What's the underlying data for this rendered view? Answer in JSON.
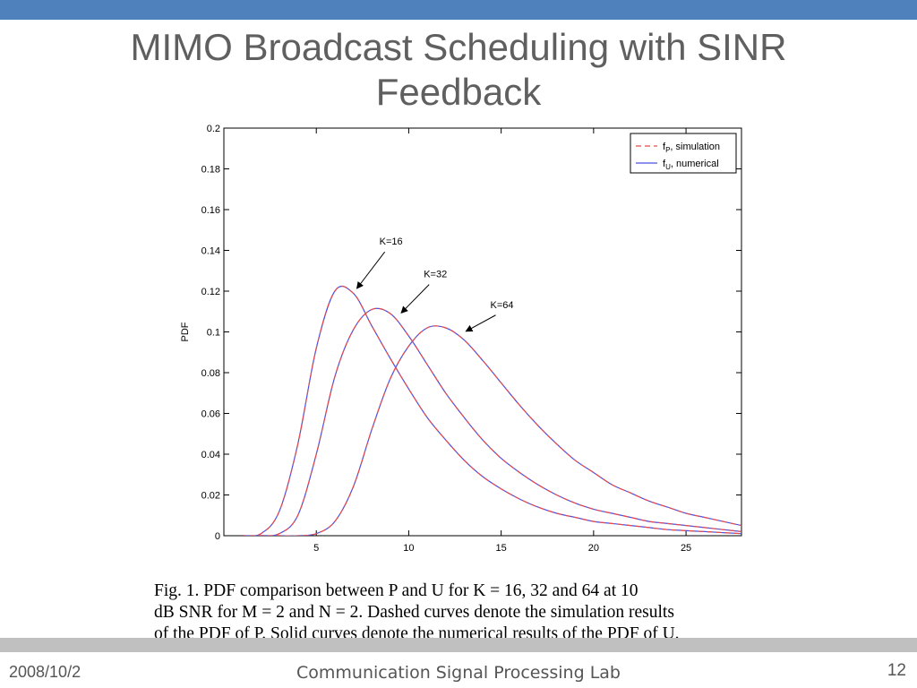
{
  "slide": {
    "title_line1": "MIMO Broadcast Scheduling with SINR",
    "title_line2": "Feedback",
    "footer_date": "2008/10/2",
    "footer_lab": "Communication Signal Processing Lab",
    "page_number": "12",
    "caption_line1": "Fig. 1.    PDF comparison between P and U for K = 16, 32 and 64 at 10",
    "caption_line2": "dB SNR for M = 2 and N = 2. Dashed curves denote the simulation results",
    "caption_line3": "of the PDF of P. Solid curves denote the numerical results of the PDF of U.",
    "colors": {
      "band": "#4f81bd",
      "footer_band": "#c0c0c0",
      "solid": "#4a50e0",
      "dashed": "#e84a4a"
    }
  },
  "chart_data": {
    "type": "line",
    "xlim": [
      0,
      28
    ],
    "ylim": [
      0,
      0.2
    ],
    "ylabel": "PDF",
    "xlabel": "",
    "x_ticks": [
      5,
      10,
      15,
      20,
      25
    ],
    "y_ticks": [
      0,
      0.02,
      0.04,
      0.06,
      0.08,
      0.1,
      0.12,
      0.14,
      0.16,
      0.18,
      0.2
    ],
    "y_tick_labels": [
      "0",
      "0.02",
      "0.04",
      "0.06",
      "0.08",
      "0.1",
      "0.12",
      "0.14",
      "0.16",
      "0.18",
      "0.2"
    ],
    "grid": false,
    "legend": {
      "placement": "top-right",
      "entries": [
        {
          "label": "fP, simulation",
          "sym": "f",
          "sub": "P",
          "text": ", simulation",
          "style": "dashed"
        },
        {
          "label": "fU, numerical",
          "sym": "f",
          "sub": "U",
          "text": ", numerical",
          "style": "solid"
        }
      ]
    },
    "x": [
      1,
      2,
      3,
      4,
      5,
      6,
      7,
      8,
      9,
      10,
      11,
      12,
      13,
      14,
      15,
      16,
      17,
      18,
      19,
      20,
      21,
      22,
      23,
      24,
      25,
      26,
      27,
      28
    ],
    "series": [
      {
        "name": "K=16",
        "y": [
          0.0,
          0.001,
          0.012,
          0.045,
          0.092,
          0.12,
          0.119,
          0.103,
          0.087,
          0.072,
          0.058,
          0.047,
          0.037,
          0.029,
          0.023,
          0.018,
          0.014,
          0.011,
          0.009,
          0.007,
          0.006,
          0.005,
          0.004,
          0.003,
          0.0025,
          0.002,
          0.0015,
          0.001
        ]
      },
      {
        "name": "K=32",
        "y": [
          0.0,
          0.0,
          0.001,
          0.01,
          0.04,
          0.078,
          0.101,
          0.111,
          0.109,
          0.098,
          0.084,
          0.07,
          0.058,
          0.047,
          0.038,
          0.031,
          0.025,
          0.02,
          0.016,
          0.013,
          0.011,
          0.009,
          0.007,
          0.006,
          0.005,
          0.004,
          0.003,
          0.002
        ]
      },
      {
        "name": "K=64",
        "y": [
          0.0,
          0.0,
          0.0,
          0.0,
          0.001,
          0.007,
          0.024,
          0.052,
          0.077,
          0.093,
          0.102,
          0.102,
          0.096,
          0.086,
          0.075,
          0.064,
          0.054,
          0.045,
          0.037,
          0.031,
          0.025,
          0.021,
          0.017,
          0.014,
          0.011,
          0.009,
          0.007,
          0.005
        ]
      }
    ],
    "annotations": [
      {
        "text": "K=16",
        "series_index": 0,
        "target": [
          7.1,
          0.12
        ],
        "label_at": [
          8.8,
          0.141
        ]
      },
      {
        "text": "K=32",
        "series_index": 1,
        "target": [
          9.5,
          0.108
        ],
        "label_at": [
          11.2,
          0.125
        ]
      },
      {
        "text": "K=64",
        "series_index": 2,
        "target": [
          13.0,
          0.099
        ],
        "label_at": [
          14.8,
          0.11
        ]
      }
    ]
  }
}
